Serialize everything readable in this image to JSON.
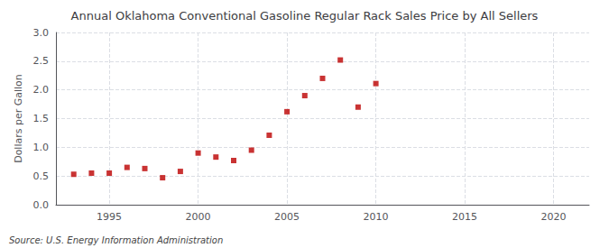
{
  "chart_data": {
    "type": "scatter",
    "title": "Annual Oklahoma Conventional Gasoline Regular Rack Sales Price by All Sellers",
    "ylabel": "Dollars per Gallon",
    "annotations": [
      "Source: U.S. Energy Information Administration"
    ],
    "x": [
      1993,
      1994,
      1995,
      1996,
      1997,
      1998,
      1999,
      2000,
      2001,
      2002,
      2003,
      2004,
      2005,
      2006,
      2007,
      2008,
      2009,
      2010
    ],
    "values": [
      0.53,
      0.55,
      0.55,
      0.65,
      0.63,
      0.47,
      0.58,
      0.9,
      0.83,
      0.77,
      0.95,
      1.21,
      1.62,
      1.9,
      2.2,
      2.52,
      1.7,
      2.11
    ],
    "color": "#bb0000",
    "marker": "square",
    "xlim": [
      1992,
      2022
    ],
    "xticks": [
      1995,
      2000,
      2005,
      2010,
      2015,
      2020
    ],
    "ylim": [
      0.0,
      3.0
    ],
    "yticks": [
      {
        "value": 0,
        "label": "0.0"
      },
      0.5,
      {
        "value": 1,
        "label": "1.0"
      },
      1.5,
      {
        "value": 2,
        "label": "2.0"
      },
      2.5,
      {
        "value": 3,
        "label": "3.0"
      }
    ],
    "grid": true
  }
}
